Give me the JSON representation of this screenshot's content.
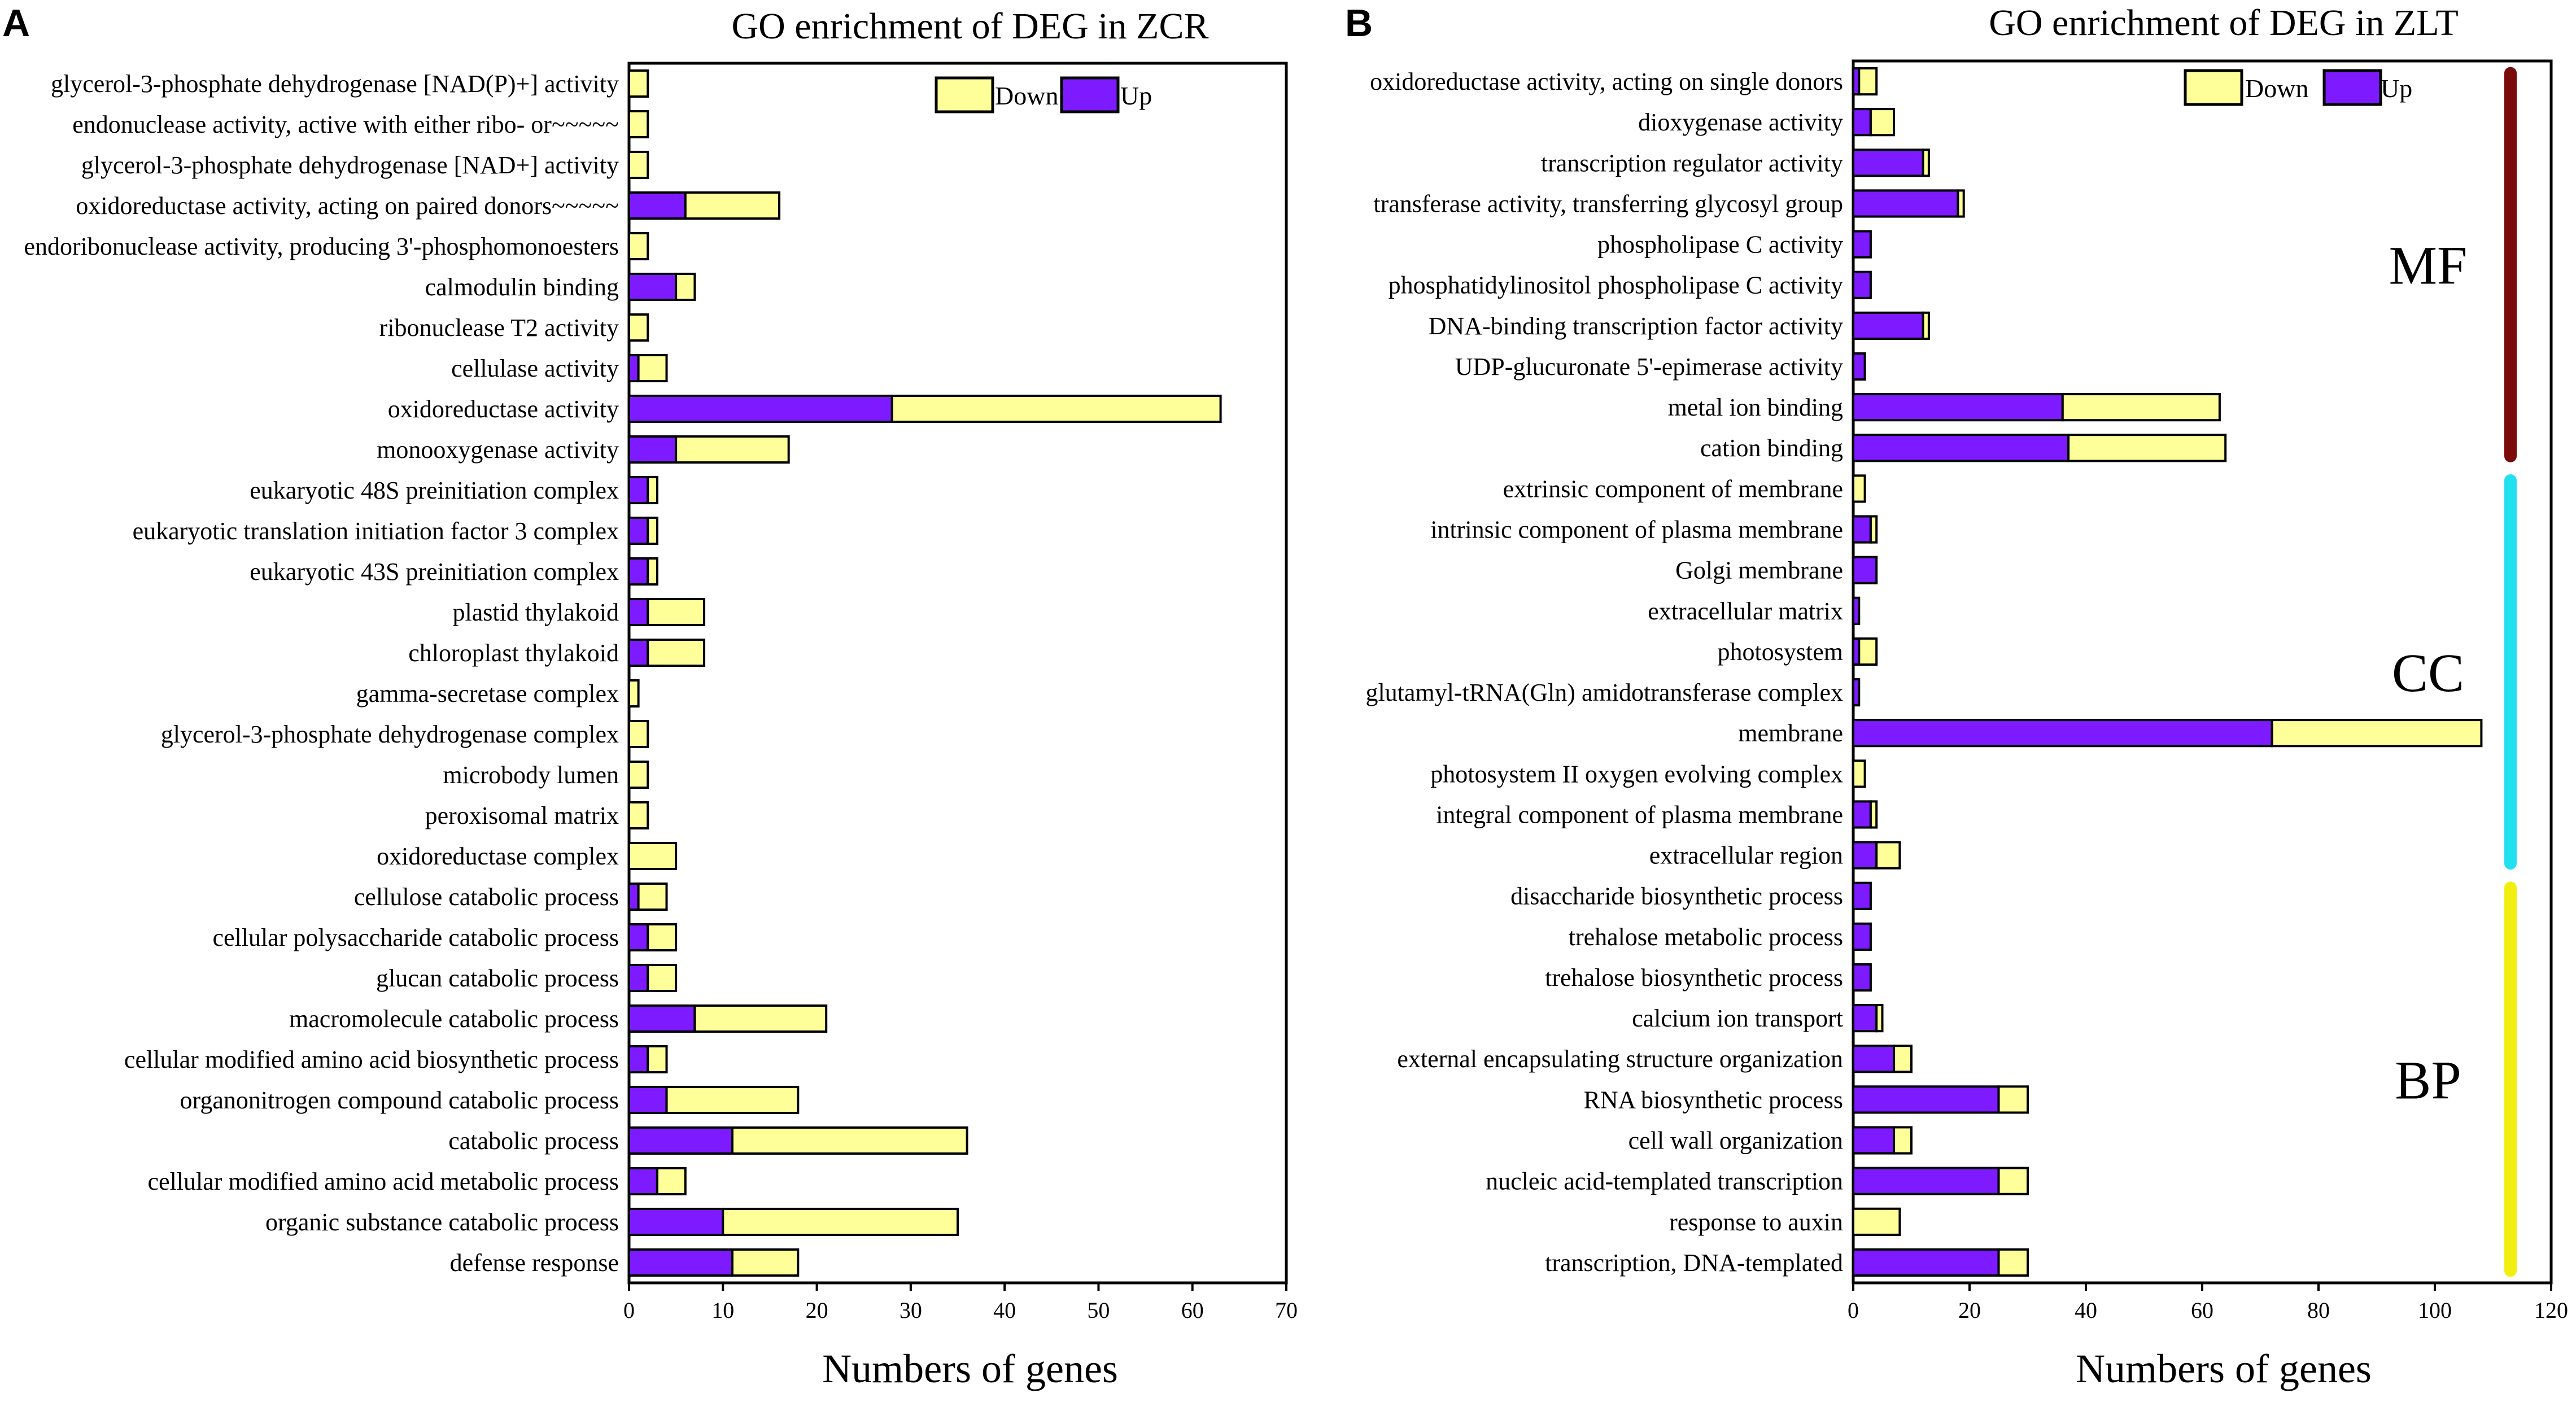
{
  "chart_data": [
    {
      "type": "bar",
      "stacked": true,
      "orientation": "horizontal",
      "panel_label": "A",
      "title": "GO enrichment of DEG in ZCR",
      "xlabel": "Numbers of genes",
      "ylabel": "",
      "xlim": [
        0,
        70
      ],
      "xticks": [
        "0",
        "10",
        "20",
        "30",
        "40",
        "50",
        "60",
        "70"
      ],
      "legend": {
        "position": "top-right",
        "entries": [
          "Down",
          "Up"
        ]
      },
      "categories": [
        "glycerol-3-phosphate dehydrogenase [NAD(P)+] activity",
        "endonuclease activity, active with either ribo- or~~~~~",
        "glycerol-3-phosphate dehydrogenase [NAD+] activity",
        "oxidoreductase activity, acting on paired donors~~~~~",
        "endoribonuclease activity, producing 3'-phosphomonoesters",
        "calmodulin binding",
        "ribonuclease T2 activity",
        "cellulase activity",
        "oxidoreductase activity",
        "monooxygenase activity",
        "eukaryotic 48S preinitiation complex",
        "eukaryotic translation initiation factor 3 complex",
        "eukaryotic 43S preinitiation complex",
        "plastid thylakoid",
        "chloroplast thylakoid",
        "gamma-secretase complex",
        "glycerol-3-phosphate dehydrogenase complex",
        "microbody lumen",
        "peroxisomal matrix",
        "oxidoreductase complex",
        "cellulose catabolic process",
        "cellular polysaccharide catabolic process",
        "glucan catabolic process",
        "macromolecule catabolic process",
        "cellular modified amino acid biosynthetic process",
        "organonitrogen compound catabolic process",
        "catabolic process",
        "cellular modified amino acid metabolic process",
        "organic substance catabolic process",
        "defense response"
      ],
      "series": [
        {
          "name": "Up",
          "values": [
            0,
            0,
            0,
            6,
            0,
            5,
            0,
            1,
            28,
            5,
            2,
            2,
            2,
            2,
            2,
            0,
            0,
            0,
            0,
            0,
            1,
            2,
            2,
            7,
            2,
            4,
            11,
            3,
            10,
            11
          ]
        },
        {
          "name": "Down",
          "values": [
            2,
            2,
            2,
            10,
            2,
            2,
            2,
            3,
            35,
            12,
            1,
            1,
            1,
            6,
            6,
            1,
            2,
            2,
            2,
            5,
            3,
            3,
            3,
            14,
            2,
            14,
            25,
            3,
            25,
            7
          ]
        }
      ]
    },
    {
      "type": "bar",
      "stacked": true,
      "orientation": "horizontal",
      "panel_label": "B",
      "title": "GO enrichment of DEG in ZLT",
      "xlabel": "Numbers of genes",
      "ylabel": "",
      "xlim": [
        0,
        120
      ],
      "xticks": [
        "0",
        "20",
        "40",
        "60",
        "80",
        "100",
        "120"
      ],
      "legend": {
        "position": "top-right",
        "entries": [
          "Down",
          "Up"
        ]
      },
      "groups": [
        {
          "label": "MF",
          "color": "#7b0a0a",
          "from": 0,
          "to": 9
        },
        {
          "label": "CC",
          "color": "#22e0f0",
          "from": 10,
          "to": 19
        },
        {
          "label": "BP",
          "color": "#f2ef10",
          "from": 20,
          "to": 29
        }
      ],
      "categories": [
        "oxidoreductase activity, acting on single donors",
        "dioxygenase activity",
        "transcription regulator activity",
        "transferase activity, transferring glycosyl group",
        "phospholipase C activity",
        "phosphatidylinositol phospholipase C activity",
        "DNA-binding transcription factor activity",
        "UDP-glucuronate 5'-epimerase activity",
        "metal ion binding",
        "cation binding",
        "extrinsic component of membrane",
        "intrinsic component of plasma membrane",
        "Golgi membrane",
        "extracellular matrix",
        "photosystem",
        "glutamyl-tRNA(Gln) amidotransferase complex",
        "membrane",
        "photosystem II oxygen evolving complex",
        "integral component of plasma membrane",
        "extracellular region",
        "disaccharide biosynthetic process",
        "trehalose metabolic process",
        "trehalose biosynthetic process",
        "calcium ion transport",
        "external encapsulating structure organization",
        "RNA biosynthetic process",
        "cell wall organization",
        "nucleic acid-templated transcription",
        "response to auxin",
        "transcription, DNA-templated"
      ],
      "series": [
        {
          "name": "Up",
          "values": [
            1,
            3,
            12,
            18,
            3,
            3,
            12,
            2,
            36,
            37,
            0,
            3,
            4,
            1,
            1,
            1,
            72,
            0,
            3,
            4,
            3,
            3,
            3,
            4,
            7,
            25,
            7,
            25,
            0,
            25
          ]
        },
        {
          "name": "Down",
          "values": [
            3,
            4,
            1,
            1,
            0,
            0,
            1,
            0,
            27,
            27,
            2,
            1,
            0,
            0,
            3,
            0,
            36,
            2,
            1,
            4,
            0,
            0,
            0,
            1,
            3,
            5,
            3,
            5,
            8,
            5
          ]
        }
      ]
    }
  ],
  "colors": {
    "up": "#7d1aff",
    "down": "#ffff99",
    "outline": "#000000"
  }
}
